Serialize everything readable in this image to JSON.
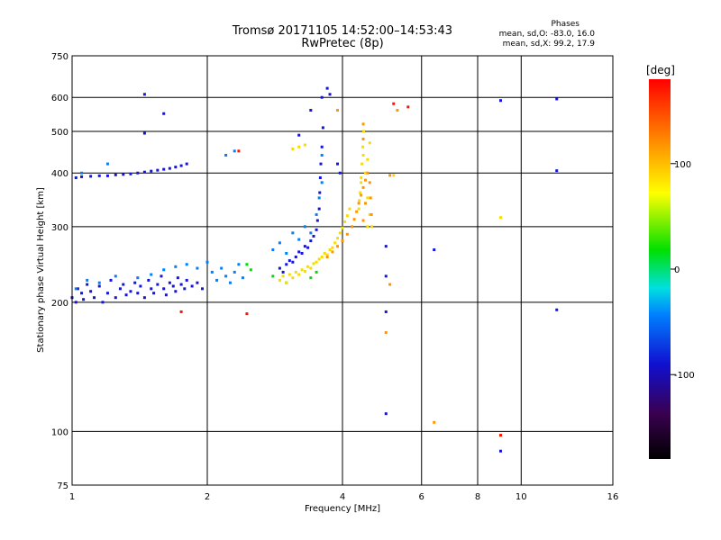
{
  "title_line1": "Tromsø 20171105 14:52:00–14:53:43",
  "title_line2": "RwPretec (8p)",
  "phase_stats": {
    "heading": "Phases",
    "line_o": "mean, sd,O: -83.0, 16.0",
    "line_x": "mean, sd,X:  99.2, 17.9"
  },
  "chart_data": {
    "type": "scatter",
    "xlabel": "Frequency [MHz]",
    "ylabel": "Stationary phase Virtual Height [km]",
    "x_scale": "log",
    "y_scale": "log",
    "xlim": [
      1,
      16
    ],
    "ylim": [
      75,
      750
    ],
    "x_ticks": [
      1,
      2,
      4,
      6,
      8,
      10,
      16
    ],
    "y_ticks": [
      75,
      100,
      200,
      300,
      400,
      500,
      600,
      750
    ],
    "x_gridlines": [
      2,
      4,
      6,
      8,
      10
    ],
    "y_gridlines": [
      100,
      200,
      300,
      400,
      500,
      600
    ],
    "colorbar": {
      "label": "[deg]",
      "range": [
        -180,
        180
      ],
      "ticks": [
        100,
        0,
        -100
      ],
      "colormap": "rainbow (black-purple-blue-cyan-green-yellow-orange-red)"
    },
    "series": [
      {
        "color_value": -100,
        "points": [
          [
            1.02,
            390
          ],
          [
            1.05,
            392
          ],
          [
            1.1,
            393
          ],
          [
            1.15,
            394
          ],
          [
            1.2,
            394
          ],
          [
            1.25,
            396
          ],
          [
            1.3,
            397
          ],
          [
            1.35,
            398
          ],
          [
            1.4,
            400
          ],
          [
            1.45,
            402
          ],
          [
            1.5,
            404
          ],
          [
            1.55,
            406
          ],
          [
            1.6,
            408
          ],
          [
            1.65,
            410
          ],
          [
            1.7,
            413
          ],
          [
            1.75,
            416
          ],
          [
            1.8,
            420
          ],
          [
            1.0,
            205
          ],
          [
            1.02,
            200
          ],
          [
            1.03,
            215
          ],
          [
            1.05,
            210
          ],
          [
            1.06,
            203
          ],
          [
            1.08,
            220
          ],
          [
            1.1,
            212
          ],
          [
            1.12,
            205
          ],
          [
            1.15,
            218
          ],
          [
            1.17,
            200
          ],
          [
            1.2,
            210
          ],
          [
            1.22,
            225
          ],
          [
            1.25,
            205
          ],
          [
            1.28,
            215
          ],
          [
            1.3,
            220
          ],
          [
            1.32,
            208
          ],
          [
            1.35,
            212
          ],
          [
            1.38,
            222
          ],
          [
            1.4,
            210
          ],
          [
            1.42,
            218
          ],
          [
            1.45,
            205
          ],
          [
            1.48,
            225
          ],
          [
            1.5,
            215
          ],
          [
            1.52,
            210
          ],
          [
            1.55,
            220
          ],
          [
            1.58,
            230
          ],
          [
            1.6,
            215
          ],
          [
            1.62,
            208
          ],
          [
            1.65,
            222
          ],
          [
            1.68,
            218
          ],
          [
            1.7,
            212
          ],
          [
            1.72,
            228
          ],
          [
            1.75,
            220
          ],
          [
            1.78,
            215
          ],
          [
            1.8,
            225
          ],
          [
            1.85,
            218
          ],
          [
            1.9,
            222
          ],
          [
            1.95,
            215
          ],
          [
            1.45,
            610
          ],
          [
            1.45,
            495
          ],
          [
            1.6,
            550
          ],
          [
            2.9,
            240
          ],
          [
            2.95,
            235
          ],
          [
            3.0,
            245
          ],
          [
            3.05,
            250
          ],
          [
            3.1,
            248
          ],
          [
            3.15,
            255
          ],
          [
            3.2,
            262
          ],
          [
            3.25,
            260
          ],
          [
            3.3,
            270
          ],
          [
            3.35,
            268
          ],
          [
            3.4,
            278
          ],
          [
            3.45,
            285
          ],
          [
            3.5,
            295
          ],
          [
            3.52,
            310
          ],
          [
            3.55,
            330
          ],
          [
            3.56,
            360
          ],
          [
            3.57,
            390
          ],
          [
            3.58,
            420
          ],
          [
            3.6,
            460
          ],
          [
            3.62,
            510
          ],
          [
            3.2,
            490
          ],
          [
            3.4,
            560
          ],
          [
            3.6,
            600
          ],
          [
            3.7,
            630
          ],
          [
            3.75,
            610
          ],
          [
            3.9,
            420
          ],
          [
            3.95,
            400
          ],
          [
            5.0,
            270
          ],
          [
            5.0,
            230
          ],
          [
            5.0,
            190
          ],
          [
            5.0,
            110
          ],
          [
            6.4,
            265
          ],
          [
            9.0,
            590
          ],
          [
            9.0,
            90
          ],
          [
            12.0,
            595
          ],
          [
            12.0,
            405
          ],
          [
            12.0,
            192
          ]
        ]
      },
      {
        "color_value": -60,
        "points": [
          [
            1.02,
            215
          ],
          [
            1.08,
            225
          ],
          [
            1.15,
            222
          ],
          [
            1.25,
            230
          ],
          [
            1.4,
            228
          ],
          [
            1.5,
            232
          ],
          [
            1.6,
            238
          ],
          [
            1.7,
            242
          ],
          [
            1.8,
            245
          ],
          [
            1.9,
            240
          ],
          [
            2.0,
            248
          ],
          [
            2.05,
            235
          ],
          [
            2.1,
            225
          ],
          [
            2.15,
            240
          ],
          [
            2.2,
            230
          ],
          [
            2.25,
            222
          ],
          [
            2.3,
            235
          ],
          [
            2.35,
            245
          ],
          [
            2.4,
            228
          ],
          [
            2.8,
            265
          ],
          [
            2.9,
            275
          ],
          [
            3.0,
            260
          ],
          [
            3.1,
            290
          ],
          [
            3.2,
            280
          ],
          [
            3.3,
            300
          ],
          [
            3.4,
            290
          ],
          [
            3.5,
            320
          ],
          [
            3.55,
            350
          ],
          [
            3.6,
            380
          ],
          [
            3.6,
            440
          ],
          [
            2.2,
            440
          ],
          [
            2.3,
            450
          ],
          [
            1.2,
            420
          ],
          [
            1.05,
            400
          ]
        ]
      },
      {
        "color_value": 20,
        "points": [
          [
            2.45,
            245
          ],
          [
            2.5,
            238
          ],
          [
            2.8,
            230
          ],
          [
            3.0,
            222
          ],
          [
            3.4,
            228
          ],
          [
            3.5,
            235
          ]
        ]
      },
      {
        "color_value": 90,
        "points": [
          [
            2.9,
            225
          ],
          [
            2.95,
            230
          ],
          [
            3.0,
            222
          ],
          [
            3.05,
            232
          ],
          [
            3.1,
            228
          ],
          [
            3.15,
            235
          ],
          [
            3.2,
            232
          ],
          [
            3.25,
            238
          ],
          [
            3.3,
            236
          ],
          [
            3.35,
            242
          ],
          [
            3.4,
            240
          ],
          [
            3.45,
            246
          ],
          [
            3.5,
            248
          ],
          [
            3.55,
            252
          ],
          [
            3.6,
            255
          ],
          [
            3.65,
            260
          ],
          [
            3.7,
            258
          ],
          [
            3.75,
            265
          ],
          [
            3.8,
            268
          ],
          [
            3.85,
            275
          ],
          [
            3.9,
            282
          ],
          [
            3.95,
            290
          ],
          [
            4.0,
            298
          ],
          [
            4.05,
            308
          ],
          [
            4.1,
            318
          ],
          [
            4.15,
            330
          ],
          [
            3.2,
            460
          ],
          [
            3.3,
            465
          ],
          [
            3.1,
            455
          ],
          [
            4.35,
            330
          ],
          [
            4.38,
            360
          ],
          [
            4.4,
            390
          ],
          [
            4.42,
            420
          ],
          [
            4.44,
            460
          ],
          [
            4.46,
            500
          ],
          [
            4.45,
            440
          ],
          [
            4.4,
            380
          ],
          [
            4.36,
            345
          ],
          [
            4.5,
            400
          ],
          [
            4.55,
            430
          ],
          [
            4.6,
            470
          ],
          [
            4.55,
            350
          ],
          [
            4.6,
            320
          ],
          [
            4.65,
            300
          ],
          [
            4.55,
            300
          ],
          [
            9.0,
            315
          ],
          [
            5.2,
            395
          ]
        ]
      },
      {
        "color_value": 140,
        "points": [
          [
            3.7,
            255
          ],
          [
            3.8,
            262
          ],
          [
            3.9,
            270
          ],
          [
            4.0,
            278
          ],
          [
            4.1,
            288
          ],
          [
            4.2,
            300
          ],
          [
            4.25,
            312
          ],
          [
            4.3,
            325
          ],
          [
            4.35,
            340
          ],
          [
            4.4,
            355
          ],
          [
            4.45,
            370
          ],
          [
            4.5,
            385
          ],
          [
            4.55,
            400
          ],
          [
            4.6,
            380
          ],
          [
            4.62,
            350
          ],
          [
            4.64,
            320
          ],
          [
            4.5,
            340
          ],
          [
            4.45,
            310
          ],
          [
            4.45,
            520
          ],
          [
            4.45,
            480
          ],
          [
            5.1,
            395
          ],
          [
            5.3,
            560
          ],
          [
            3.9,
            560
          ],
          [
            6.4,
            105
          ],
          [
            5.0,
            170
          ],
          [
            5.1,
            220
          ]
        ]
      },
      {
        "color_value": 175,
        "points": [
          [
            1.75,
            190
          ],
          [
            2.45,
            188
          ],
          [
            2.35,
            450
          ],
          [
            9.0,
            98
          ],
          [
            5.2,
            580
          ],
          [
            5.6,
            570
          ]
        ]
      }
    ]
  }
}
